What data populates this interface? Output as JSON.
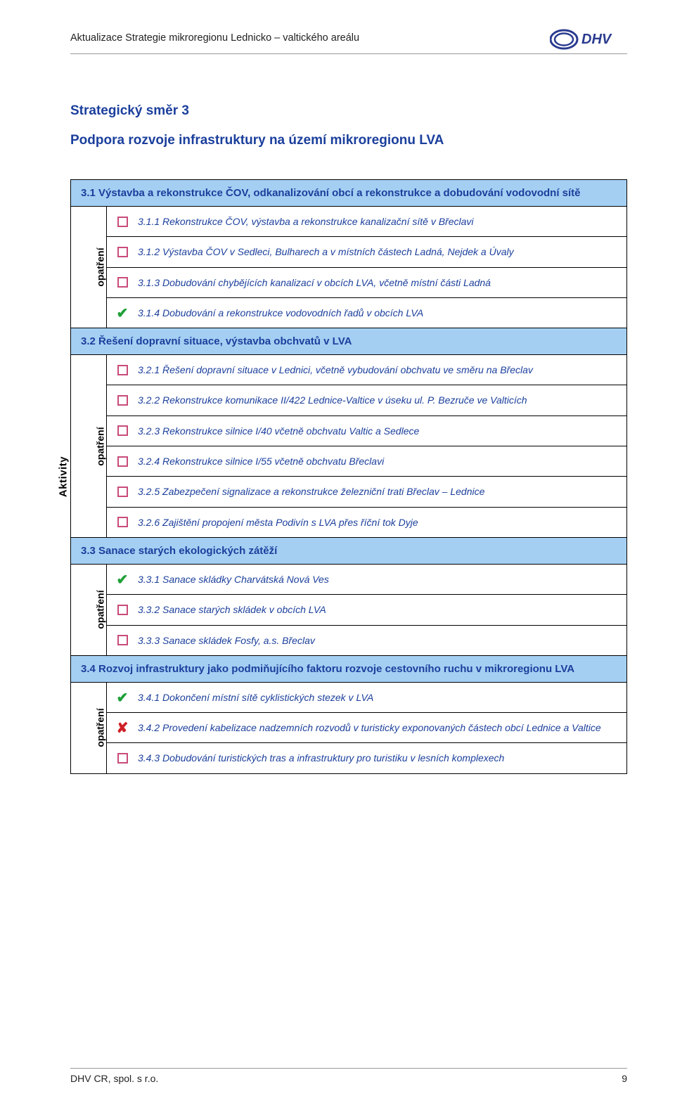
{
  "colors": {
    "heading": "#1b3f9c",
    "group_bg": "#a4cff3",
    "item_text": "#1b3f9c",
    "border": "#000000",
    "header_rule": "#999999",
    "icon_box_border": "#c94b7a",
    "icon_check": "#1fa038",
    "icon_cross": "#d02028",
    "page_bg": "#ffffff"
  },
  "typography": {
    "body_family": "Verdana, Arial, sans-serif",
    "heading_size_pt": 14,
    "item_size_pt": 10.5,
    "item_style": "italic"
  },
  "header": {
    "title": "Aktualizace Strategie mikroregionu Lednicko – valtického areálu",
    "logo_alt": "DHV"
  },
  "footer": {
    "company": "DHV CR, spol. s r.o.",
    "page_number": "9"
  },
  "section": {
    "heading": "Strategický směr 3",
    "subheading": "Podpora rozvoje infrastruktury na území mikroregionu LVA"
  },
  "labels": {
    "aktivity": "Aktivity",
    "opatreni": "opatření"
  },
  "icons": {
    "box": "box",
    "check": "check",
    "cross": "cross"
  },
  "groups": [
    {
      "title": "3.1 Výstavba a rekonstrukce ČOV, odkanalizování obcí a rekonstrukce a dobudování vodovodní sítě",
      "items": [
        {
          "icon": "box",
          "text": "3.1.1 Rekonstrukce ČOV, výstavba a rekonstrukce kanalizační sítě v Břeclavi"
        },
        {
          "icon": "box",
          "text": "3.1.2 Výstavba ČOV v Sedleci, Bulharech a v místních částech Ladná, Nejdek a Úvaly"
        },
        {
          "icon": "box",
          "text": "3.1.3 Dobudování chybějících kanalizací v obcích LVA, včetně místní části Ladná"
        },
        {
          "icon": "check",
          "text": "3.1.4 Dobudování a rekonstrukce vodovodních řadů v obcích LVA"
        }
      ]
    },
    {
      "title": "3.2 Řešení dopravní situace, výstavba obchvatů v LVA",
      "items": [
        {
          "icon": "box",
          "text": "3.2.1 Řešení dopravní situace v Lednici, včetně vybudování obchvatu ve směru na Břeclav"
        },
        {
          "icon": "box",
          "text": "3.2.2 Rekonstrukce komunikace II/422 Lednice-Valtice v úseku ul. P. Bezruče ve Valticích"
        },
        {
          "icon": "box",
          "text": "3.2.3 Rekonstrukce silnice I/40 včetně obchvatu Valtic a Sedlece"
        },
        {
          "icon": "box",
          "text": "3.2.4 Rekonstrukce silnice I/55 včetně obchvatu Břeclavi"
        },
        {
          "icon": "box",
          "text": "3.2.5 Zabezpečení signalizace a rekonstrukce železniční trati Břeclav – Lednice"
        },
        {
          "icon": "box",
          "text": "3.2.6 Zajištění propojení města Podivín s LVA přes říční tok Dyje"
        }
      ]
    },
    {
      "title": "3.3 Sanace starých ekologických zátěží",
      "items": [
        {
          "icon": "check",
          "text": "3.3.1 Sanace skládky Charvátská Nová Ves"
        },
        {
          "icon": "box",
          "text": "3.3.2 Sanace starých skládek v obcích LVA"
        },
        {
          "icon": "box",
          "text": "3.3.3 Sanace skládek Fosfy, a.s. Břeclav"
        }
      ]
    },
    {
      "title": "3.4 Rozvoj infrastruktury jako podmiňujícího faktoru rozvoje cestovního ruchu v mikroregionu LVA",
      "items": [
        {
          "icon": "check",
          "text": "3.4.1 Dokončení místní sítě cyklistických stezek v LVA"
        },
        {
          "icon": "cross",
          "text": "3.4.2 Provedení kabelizace nadzemních rozvodů v turisticky exponovaných částech obcí Lednice a Valtice"
        },
        {
          "icon": "box",
          "text": "3.4.3 Dobudování turistických tras a infrastruktury pro turistiku v lesních komplexech"
        }
      ]
    }
  ]
}
